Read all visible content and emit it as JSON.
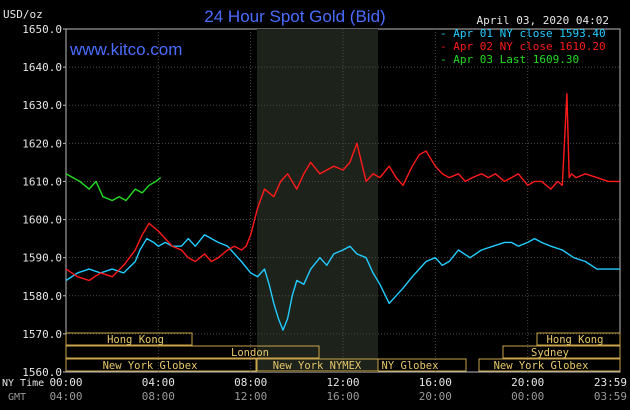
{
  "header": {
    "title": "24 Hour Spot Gold (Bid)",
    "unit": "USD/oz",
    "date": "April 03, 2020 04:02",
    "website": "www.kitco.com"
  },
  "legend": [
    {
      "label": "Apr 01 NY close 1593.40",
      "color": "#22ccff"
    },
    {
      "label": "Apr 02 NY close 1610.20",
      "color": "#ff1a1a"
    },
    {
      "label": "Apr 03 Last 1609.30",
      "color": "#22dd22"
    }
  ],
  "y_ticks": [
    "1650.0",
    "1640.0",
    "1630.0",
    "1620.0",
    "1610.0",
    "1600.0",
    "1590.0",
    "1580.0",
    "1570.0",
    "1560.0"
  ],
  "x_axis": {
    "ny_label": "NY Time",
    "gmt_label": "GMT",
    "ny_ticks": [
      "00:00",
      "04:00",
      "08:00",
      "12:00",
      "16:00",
      "20:00",
      "23:59"
    ],
    "gmt_ticks": [
      "04:00",
      "08:00",
      "12:00",
      "16:00",
      "20:00",
      "00:00",
      "03:59"
    ]
  },
  "sessions": [
    {
      "label": "Hong Kong"
    },
    {
      "label": "London"
    },
    {
      "label": "New York Globex"
    },
    {
      "label": "New York NYMEX"
    },
    {
      "label": "NY Globex"
    },
    {
      "label": "Hong Kong"
    },
    {
      "label": "Sydney"
    },
    {
      "label": "New York Globex"
    }
  ],
  "chart_data": {
    "type": "line",
    "title": "24 Hour Spot Gold (Bid)",
    "ylabel": "USD/oz",
    "xlabel": "NY Time",
    "ylim": [
      1560,
      1650
    ],
    "xlim": [
      0,
      24
    ],
    "grid": true,
    "legend_position": "top-right",
    "series": [
      {
        "name": "Apr 01 NY close 1593.40",
        "color": "#22ccff",
        "x": [
          0,
          0.5,
          1,
          1.5,
          2,
          2.5,
          3,
          3.2,
          3.5,
          3.8,
          4,
          4.3,
          4.6,
          5,
          5.3,
          5.6,
          6,
          6.3,
          6.6,
          7,
          7.3,
          7.6,
          8,
          8.3,
          8.6,
          8.8,
          9,
          9.2,
          9.4,
          9.6,
          9.8,
          10,
          10.3,
          10.6,
          11,
          11.3,
          11.6,
          12,
          12.3,
          12.6,
          13,
          13.3,
          13.6,
          14,
          14.3,
          14.6,
          15,
          15.3,
          15.6,
          16,
          16.3,
          16.6,
          17,
          17.5,
          18,
          18.5,
          19,
          19.3,
          19.6,
          20,
          20.3,
          20.6,
          21,
          21.5,
          22,
          22.5,
          23,
          23.5,
          23.99
        ],
        "y": [
          1584,
          1586,
          1587,
          1586,
          1587,
          1586,
          1589,
          1592,
          1595,
          1594,
          1593,
          1594,
          1593,
          1593,
          1595,
          1593,
          1596,
          1595,
          1594,
          1593,
          1591,
          1589,
          1586,
          1585,
          1587,
          1583,
          1578,
          1574,
          1571,
          1574,
          1580,
          1584,
          1583,
          1587,
          1590,
          1588,
          1591,
          1592,
          1593,
          1591,
          1590,
          1586,
          1583,
          1578,
          1580,
          1582,
          1585,
          1587,
          1589,
          1590,
          1588,
          1589,
          1592,
          1590,
          1592,
          1593,
          1594,
          1594,
          1593,
          1594,
          1595,
          1594,
          1593,
          1592,
          1590,
          1589,
          1587,
          1587,
          1587
        ]
      },
      {
        "name": "Apr 02 NY close 1610.20",
        "color": "#ff1a1a",
        "x": [
          0,
          0.5,
          1,
          1.5,
          2,
          2.5,
          3,
          3.3,
          3.6,
          4,
          4.3,
          4.6,
          5,
          5.3,
          5.6,
          6,
          6.3,
          6.6,
          7,
          7.3,
          7.6,
          7.8,
          8,
          8.3,
          8.6,
          9,
          9.3,
          9.6,
          10,
          10.3,
          10.6,
          11,
          11.3,
          11.6,
          12,
          12.3,
          12.6,
          13,
          13.3,
          13.6,
          14,
          14.3,
          14.6,
          15,
          15.3,
          15.6,
          16,
          16.3,
          16.6,
          17,
          17.3,
          17.6,
          18,
          18.3,
          18.6,
          19,
          19.3,
          19.6,
          20,
          20.3,
          20.6,
          21,
          21.3,
          21.5,
          21.7,
          21.8,
          21.9,
          22.1,
          22.5,
          23,
          23.5,
          23.99
        ],
        "y": [
          1587,
          1585,
          1584,
          1586,
          1585,
          1588,
          1592,
          1596,
          1599,
          1597,
          1595,
          1593,
          1592,
          1590,
          1589,
          1591,
          1589,
          1590,
          1592,
          1593,
          1592,
          1593,
          1596,
          1603,
          1608,
          1606,
          1610,
          1612,
          1608,
          1612,
          1615,
          1612,
          1613,
          1614,
          1613,
          1615,
          1620,
          1610,
          1612,
          1611,
          1614,
          1611,
          1609,
          1614,
          1617,
          1618,
          1614,
          1612,
          1611,
          1612,
          1610,
          1611,
          1612,
          1611,
          1612,
          1610,
          1611,
          1612,
          1609,
          1610,
          1610,
          1608,
          1610,
          1609,
          1633,
          1611,
          1612,
          1611,
          1612,
          1611,
          1610,
          1610
        ]
      },
      {
        "name": "Apr 03 Last 1609.30",
        "color": "#22dd22",
        "x": [
          0,
          0.3,
          0.6,
          1,
          1.3,
          1.6,
          2,
          2.3,
          2.6,
          3,
          3.3,
          3.6,
          3.9,
          4.1
        ],
        "y": [
          1612,
          1611,
          1610,
          1608,
          1610,
          1606,
          1605,
          1606,
          1605,
          1608,
          1607,
          1609,
          1610,
          1611
        ]
      }
    ]
  }
}
